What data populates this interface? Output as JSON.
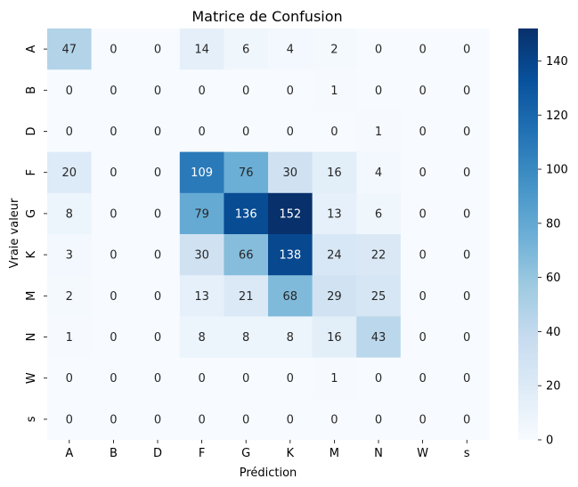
{
  "chart_data": {
    "type": "heatmap",
    "title": "Matrice de Confusion",
    "xlabel": "Prédiction",
    "ylabel": "Vraie valeur",
    "x_categories": [
      "A",
      "B",
      "D",
      "F",
      "G",
      "K",
      "M",
      "N",
      "W",
      "s"
    ],
    "y_categories": [
      "A",
      "B",
      "D",
      "F",
      "G",
      "K",
      "M",
      "N",
      "W",
      "s"
    ],
    "values": [
      [
        47,
        0,
        0,
        14,
        6,
        4,
        2,
        0,
        0,
        0
      ],
      [
        0,
        0,
        0,
        0,
        0,
        0,
        1,
        0,
        0,
        0
      ],
      [
        0,
        0,
        0,
        0,
        0,
        0,
        0,
        1,
        0,
        0
      ],
      [
        20,
        0,
        0,
        109,
        76,
        30,
        16,
        4,
        0,
        0
      ],
      [
        8,
        0,
        0,
        79,
        136,
        152,
        13,
        6,
        0,
        0
      ],
      [
        3,
        0,
        0,
        30,
        66,
        138,
        24,
        22,
        0,
        0
      ],
      [
        2,
        0,
        0,
        13,
        21,
        68,
        29,
        25,
        0,
        0
      ],
      [
        1,
        0,
        0,
        8,
        8,
        8,
        16,
        43,
        0,
        0
      ],
      [
        0,
        0,
        0,
        0,
        0,
        0,
        1,
        0,
        0,
        0
      ],
      [
        0,
        0,
        0,
        0,
        0,
        0,
        0,
        0,
        0,
        0
      ]
    ],
    "colormap": "Blues",
    "vmin": 0,
    "vmax": 152,
    "colorbar_ticks": [
      0,
      20,
      40,
      60,
      80,
      100,
      120,
      140
    ],
    "annotations": true
  }
}
